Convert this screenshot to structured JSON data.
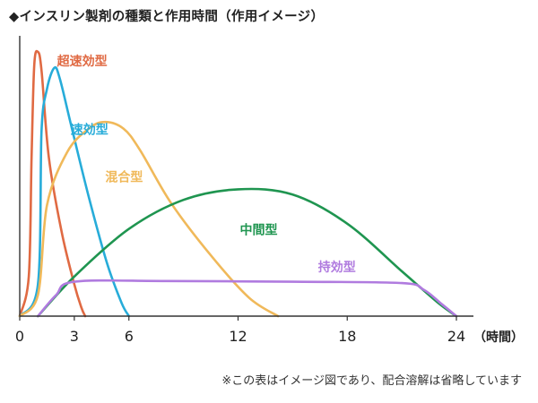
{
  "title": "◆インスリン製剤の種類と作用時間（作用イメージ）",
  "note": "※この表はイメージ図であり、配合溶解は省略しています",
  "chart_data": {
    "type": "line",
    "title": "◆インスリン製剤の種類と作用時間（作用イメージ）",
    "xlabel": "（時間）",
    "ylabel": "",
    "xlim": [
      0,
      24
    ],
    "ylim": [
      0,
      1
    ],
    "xticks": [
      0,
      3,
      6,
      12,
      18,
      24
    ],
    "grid": false,
    "series": [
      {
        "name": "超速効型",
        "color": "#e06a43",
        "points": [
          [
            0,
            0
          ],
          [
            0.5,
            0.15
          ],
          [
            0.65,
            0.6
          ],
          [
            0.8,
            0.95
          ],
          [
            1.0,
            1.0
          ],
          [
            1.2,
            0.93
          ],
          [
            1.6,
            0.6
          ],
          [
            2.3,
            0.32
          ],
          [
            3.0,
            0.12
          ],
          [
            3.4,
            0.03
          ],
          [
            3.6,
            0
          ]
        ]
      },
      {
        "name": "速効型",
        "color": "#27acd9",
        "points": [
          [
            0,
            0
          ],
          [
            1.0,
            0.12
          ],
          [
            1.2,
            0.7
          ],
          [
            1.5,
            0.86
          ],
          [
            1.9,
            0.94
          ],
          [
            2.2,
            0.9
          ],
          [
            2.8,
            0.73
          ],
          [
            3.8,
            0.45
          ],
          [
            4.8,
            0.2
          ],
          [
            5.6,
            0.05
          ],
          [
            6.0,
            0
          ]
        ]
      },
      {
        "name": "混合型",
        "color": "#f0b95a",
        "points": [
          [
            0,
            0
          ],
          [
            1.0,
            0.08
          ],
          [
            1.5,
            0.42
          ],
          [
            2.6,
            0.62
          ],
          [
            3.8,
            0.71
          ],
          [
            4.7,
            0.735
          ],
          [
            5.7,
            0.71
          ],
          [
            6.6,
            0.63
          ],
          [
            8.3,
            0.43
          ],
          [
            10.5,
            0.23
          ],
          [
            12.6,
            0.07
          ],
          [
            14.2,
            0
          ]
        ]
      },
      {
        "name": "中間型",
        "color": "#1f9550",
        "points": [
          [
            1.0,
            0
          ],
          [
            3.0,
            0.15
          ],
          [
            6.0,
            0.33
          ],
          [
            9.0,
            0.44
          ],
          [
            12.0,
            0.48
          ],
          [
            15.0,
            0.46
          ],
          [
            18.0,
            0.35
          ],
          [
            21.0,
            0.17
          ],
          [
            23.0,
            0.05
          ],
          [
            24.0,
            0
          ]
        ]
      },
      {
        "name": "持効型",
        "color": "#b07bdf",
        "points": [
          [
            1.0,
            0
          ],
          [
            2.0,
            0.08
          ],
          [
            3.0,
            0.13
          ],
          [
            8.0,
            0.133
          ],
          [
            15.0,
            0.13
          ],
          [
            21.0,
            0.125
          ],
          [
            22.2,
            0.1
          ],
          [
            23.2,
            0.045
          ],
          [
            24.0,
            0
          ]
        ]
      }
    ],
    "labels": [
      {
        "text": "超速効型",
        "color": "#e06a43",
        "at": [
          2.05,
          0.95
        ]
      },
      {
        "text": "速効型",
        "color": "#27acd9",
        "at": [
          2.8,
          0.69
        ]
      },
      {
        "text": "混合型",
        "color": "#f0b95a",
        "at": [
          4.7,
          0.51
        ]
      },
      {
        "text": "中間型",
        "color": "#1f9550",
        "at": [
          12.1,
          0.31
        ]
      },
      {
        "text": "持効型",
        "color": "#b07bdf",
        "at": [
          16.4,
          0.17
        ]
      }
    ]
  }
}
